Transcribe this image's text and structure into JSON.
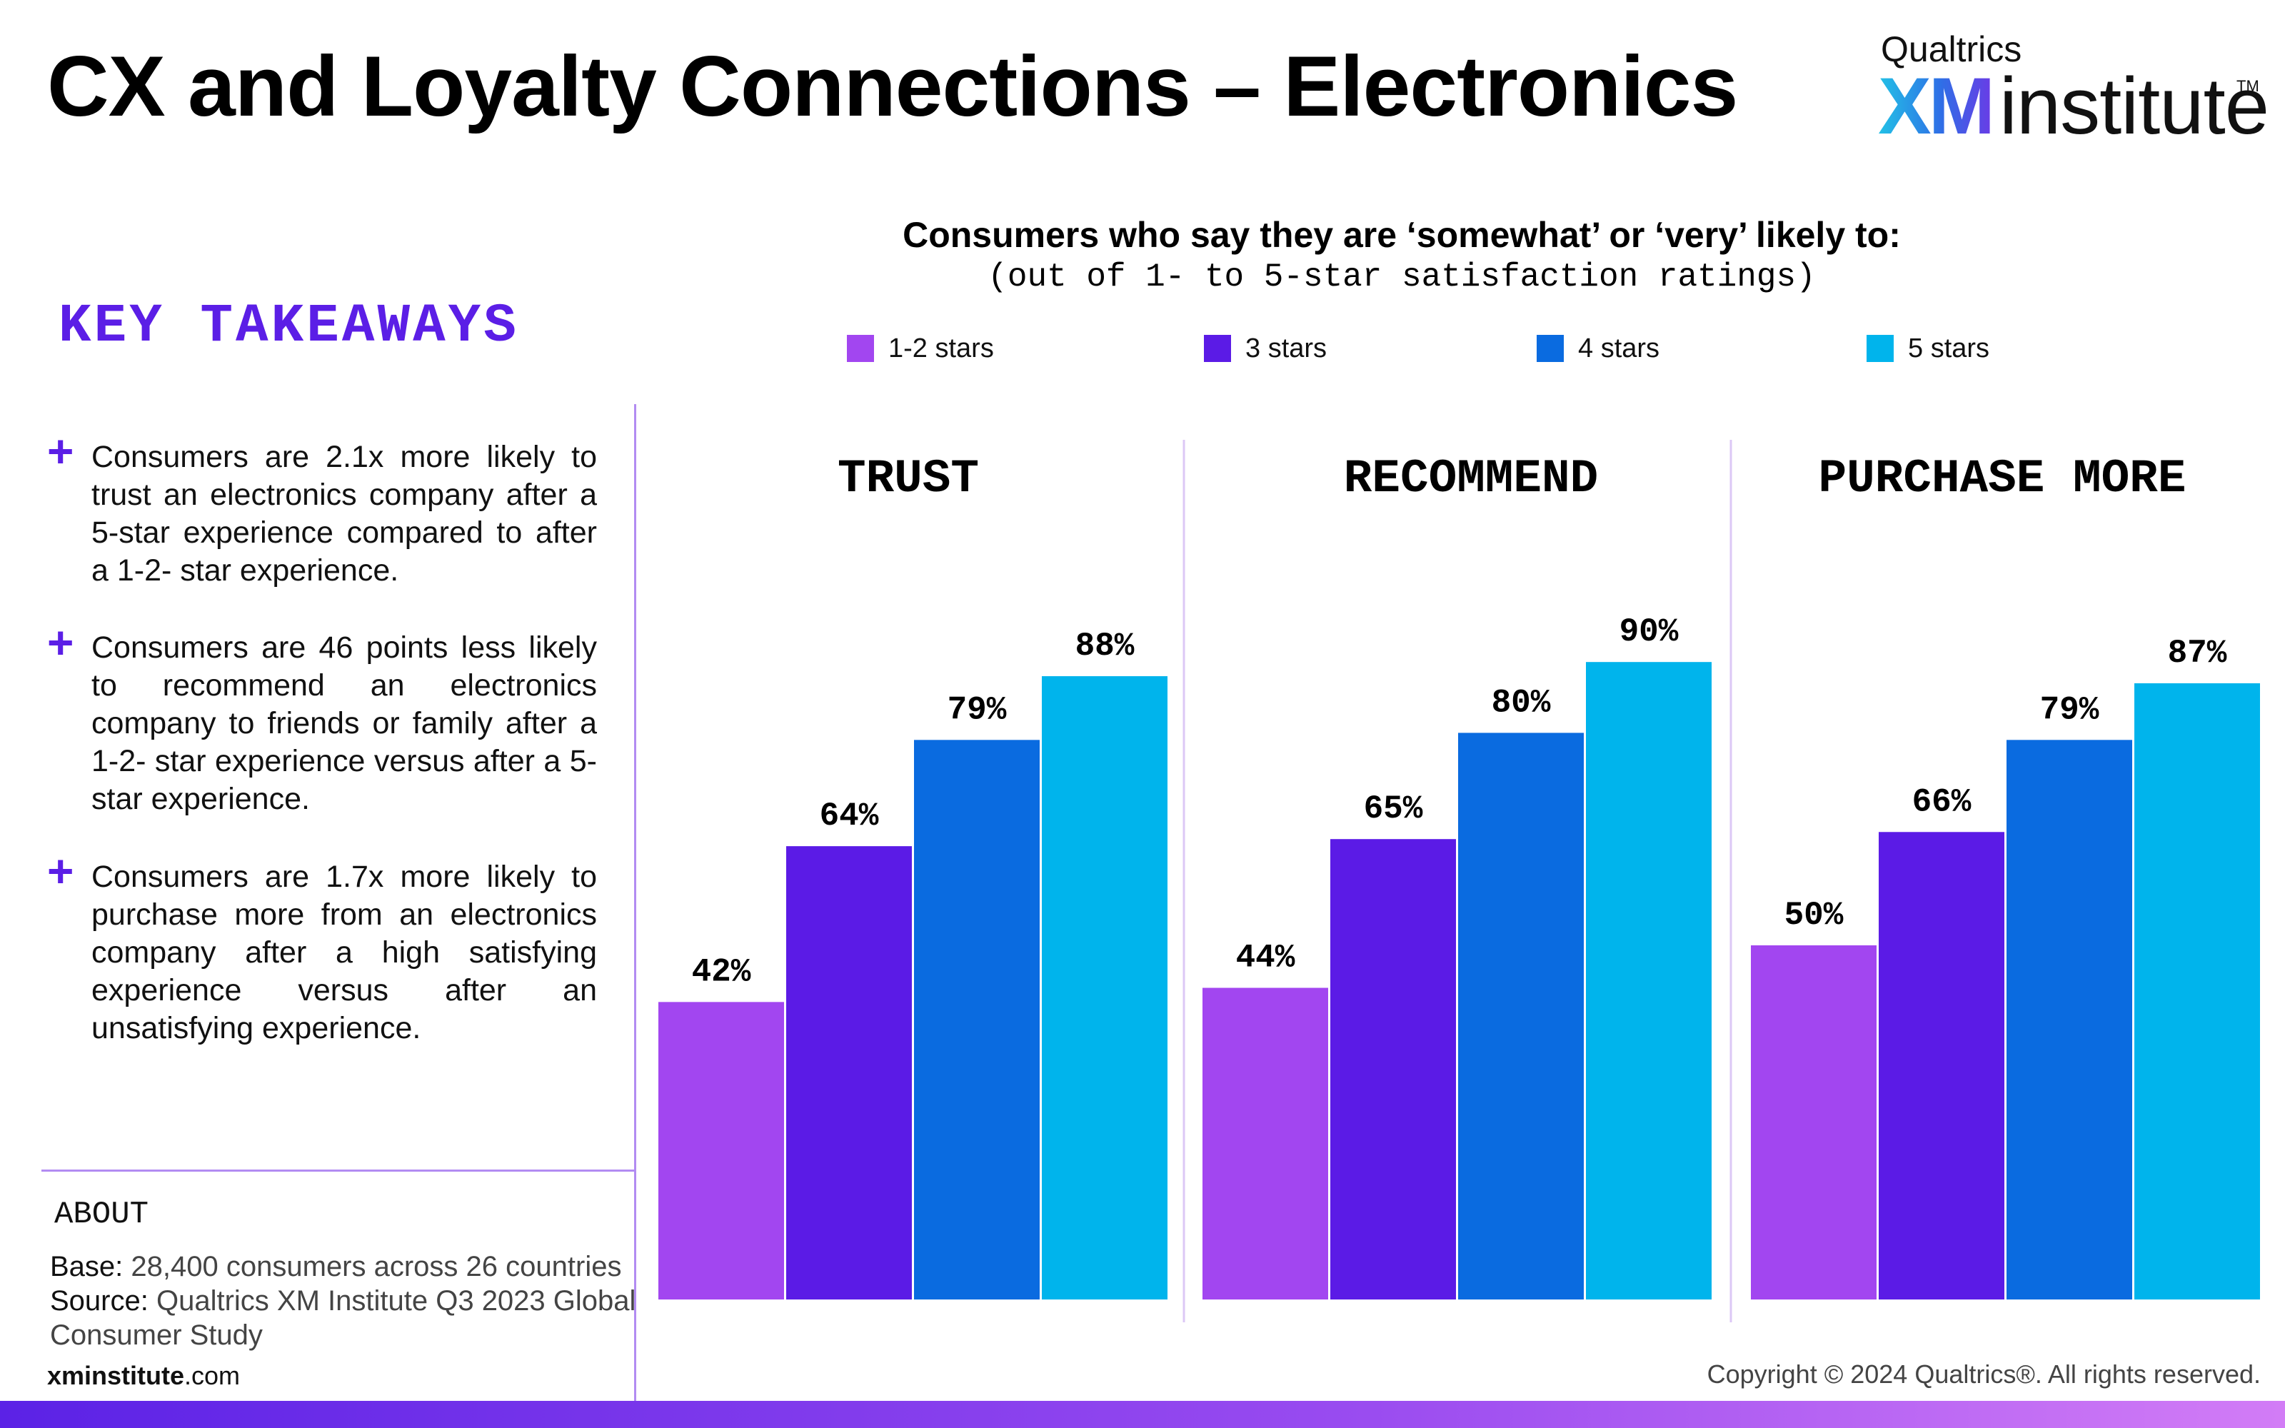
{
  "page": {
    "title": "CX and Loyalty Connections – Electronics"
  },
  "logo": {
    "top": "Qualtrics",
    "brand": "XM",
    "word": "institute",
    "tm": "TM"
  },
  "takeaways": {
    "heading": "KEY TAKEAWAYS",
    "items": [
      "Consumers are 2.1x more likely to trust an electronics company after a 5-star experience compared to after a 1-2- star experience.",
      "Consumers are 46 points less likely to recommend an electronics company to friends or family after a 1-2- star experience versus after a 5-star experience.",
      "Consumers are 1.7x more likely to purchase more from an electronics company after a high satisfying experience versus after an unsatisfying experience."
    ]
  },
  "about": {
    "heading": "ABOUT",
    "base_label": "Base:",
    "base_text": "28,400 consumers across 26 countries",
    "source_label": "Source:",
    "source_text_1": "Qualtrics XM Institute Q3 2023 Global",
    "source_text_2": "Consumer Study"
  },
  "footer": {
    "site_bold": "xminstitute",
    "site_rest": ".com",
    "copyright": "Copyright © 2024 Qualtrics®. All rights reserved."
  },
  "chart_data": {
    "type": "bar",
    "title": "Consumers who say they are ‘somewhat’ or ‘very’ likely to:",
    "subtitle": "(out of 1- to 5-star satisfaction ratings)",
    "ylim": [
      0,
      100
    ],
    "grid": false,
    "legend_position": "top",
    "series": [
      {
        "name": "1-2 stars",
        "color": "#a246f0"
      },
      {
        "name": "3 stars",
        "color": "#5b1be6"
      },
      {
        "name": "4 stars",
        "color": "#0a6be0"
      },
      {
        "name": "5 stars",
        "color": "#00b4ec"
      }
    ],
    "panels": [
      {
        "title": "TRUST",
        "values": [
          42,
          64,
          79,
          88
        ],
        "labels": [
          "42%",
          "64%",
          "79%",
          "88%"
        ]
      },
      {
        "title": "RECOMMEND",
        "values": [
          44,
          65,
          80,
          90
        ],
        "labels": [
          "44%",
          "65%",
          "80%",
          "90%"
        ]
      },
      {
        "title": "PURCHASE MORE",
        "values": [
          50,
          66,
          79,
          87
        ],
        "labels": [
          "50%",
          "66%",
          "79%",
          "87%"
        ]
      }
    ]
  }
}
